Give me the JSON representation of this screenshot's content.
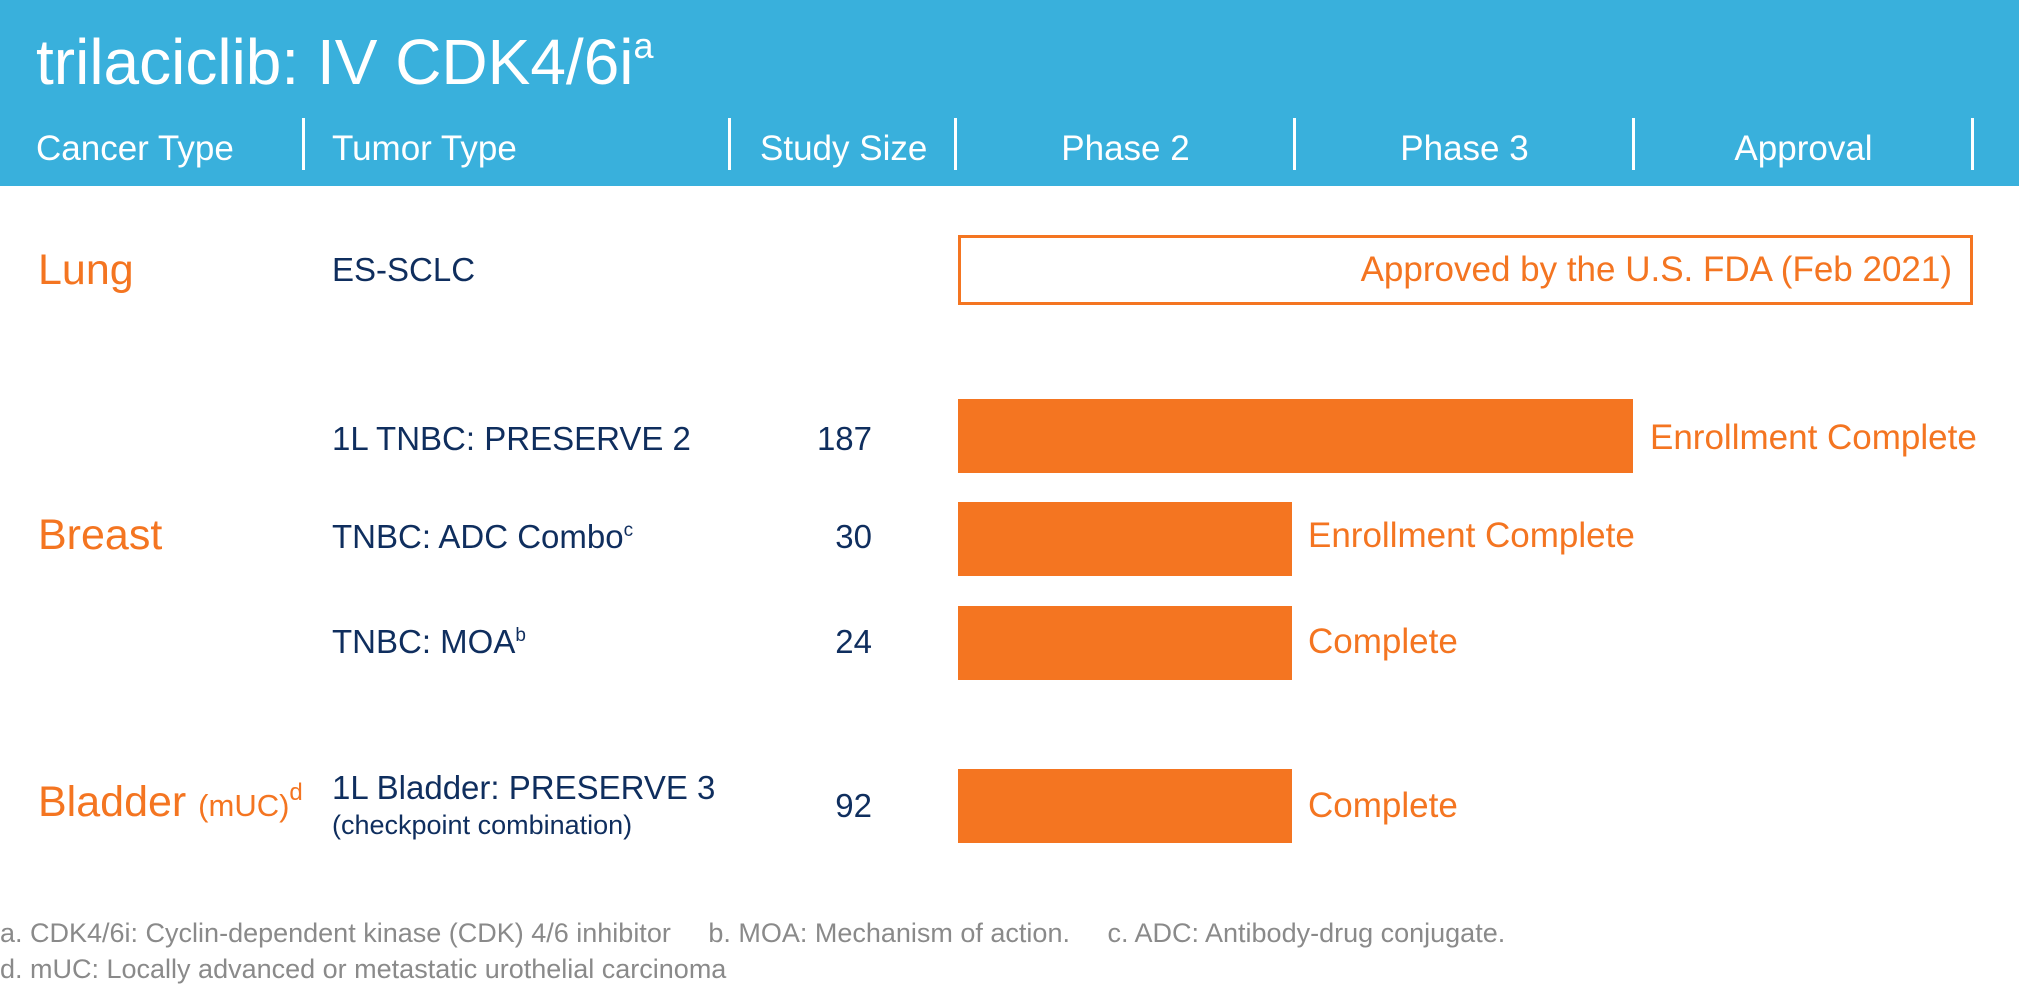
{
  "header": {
    "title": "trilaciclib: IV CDK4/6i",
    "title_sup": "a",
    "columns": {
      "cancer_type": "Cancer Type",
      "tumor_type": "Tumor Type",
      "study_size": "Study Size",
      "phase2": "Phase 2",
      "phase3": "Phase 3",
      "approval": "Approval"
    }
  },
  "colors": {
    "header_bg": "#39b0dc",
    "accent_orange": "#f47521",
    "navy_text": "#0f2e5e",
    "footnote_gray": "#8a8a8a"
  },
  "cancers": {
    "lung": "Lung",
    "breast": "Breast",
    "bladder": "Bladder",
    "bladder_qualifier": "(mUC)",
    "bladder_sup": "d"
  },
  "rows": [
    {
      "tumor": "ES-SCLC",
      "size": "",
      "status": "Approved by the U.S. FDA (Feb 2021)",
      "stage": "Approval"
    },
    {
      "tumor": "1L TNBC: PRESERVE 2",
      "size": "187",
      "status": "Enrollment Complete",
      "stage": "Phase 3"
    },
    {
      "tumor": "TNBC: ADC Combo",
      "tumor_sup": "c",
      "size": "30",
      "status": "Enrollment Complete",
      "stage": "Phase 2"
    },
    {
      "tumor": "TNBC: MOA",
      "tumor_sup": "b",
      "size": "24",
      "status": "Complete",
      "stage": "Phase 2"
    },
    {
      "tumor": "1L Bladder: PRESERVE 3",
      "tumor_sub": "(checkpoint combination)",
      "size": "92",
      "status": "Complete",
      "stage": "Phase 2"
    }
  ],
  "footnotes": {
    "line1": "a. CDK4/6i: Cyclin-dependent kinase (CDK) 4/6 inhibitor     b. MOA: Mechanism of action.     c. ADC: Antibody-drug conjugate.",
    "line2": "d. mUC: Locally advanced or metastatic urothelial carcinoma"
  }
}
